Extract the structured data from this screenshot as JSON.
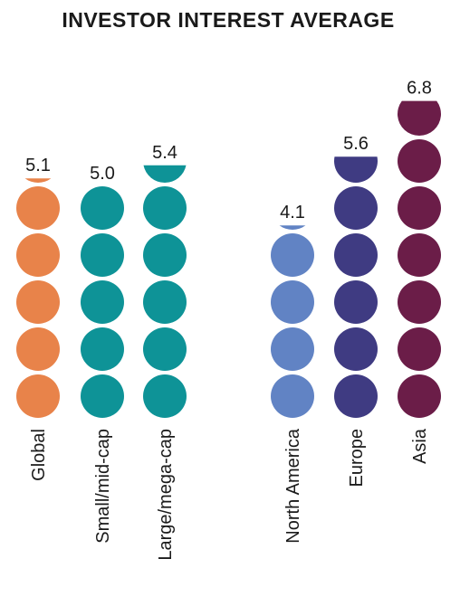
{
  "chart_data": {
    "type": "pictogram",
    "title": "INVESTOR INTEREST AVERAGE",
    "categories": [
      "Global",
      "Small/mid-cap",
      "Large/mega-cap",
      "North America",
      "Europe",
      "Asia"
    ],
    "values": [
      5.1,
      5.0,
      5.4,
      4.1,
      5.6,
      6.8
    ],
    "value_labels": [
      "5.1",
      "5.0",
      "5.4",
      "4.1",
      "5.6",
      "6.8"
    ],
    "colors": [
      "#e8834a",
      "#0e9397",
      "#0e9397",
      "#6183c4",
      "#3f3b82",
      "#6b1d48"
    ]
  }
}
